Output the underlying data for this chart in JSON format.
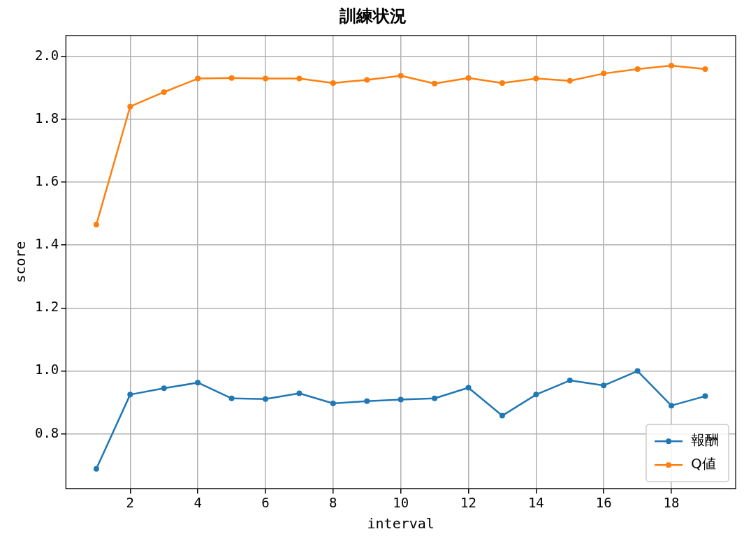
{
  "chart_data": {
    "type": "line",
    "title": "訓練状況",
    "xlabel": "interval",
    "ylabel": "score",
    "x": [
      1,
      2,
      3,
      4,
      5,
      6,
      7,
      8,
      9,
      10,
      11,
      12,
      13,
      14,
      15,
      16,
      17,
      18,
      19
    ],
    "series": [
      {
        "name": "報酬",
        "color": "#1f77b4",
        "values": [
          0.689,
          0.925,
          0.945,
          0.963,
          0.913,
          0.911,
          0.929,
          0.897,
          0.904,
          0.909,
          0.913,
          0.947,
          0.858,
          0.925,
          0.97,
          0.954,
          1.0,
          0.89,
          0.92
        ]
      },
      {
        "name": "Q値",
        "color": "#ff7f0e",
        "values": [
          1.465,
          1.84,
          1.886,
          1.929,
          1.931,
          1.929,
          1.929,
          1.915,
          1.925,
          1.938,
          1.913,
          1.931,
          1.915,
          1.929,
          1.922,
          1.945,
          1.959,
          1.97,
          1.959
        ]
      }
    ],
    "xlim": [
      0.1,
      19.9
    ],
    "xticks": [
      2,
      4,
      6,
      8,
      10,
      12,
      14,
      16,
      18
    ],
    "ylim": [
      0.626,
      2.066
    ],
    "yticks": [
      0.8,
      {
        "value": 1,
        "label": "1.0"
      },
      1.2,
      1.4,
      1.6,
      1.8,
      {
        "value": 2,
        "label": "2.0"
      }
    ],
    "grid": true,
    "legend": "bottom right",
    "marker": "circle",
    "line_style": "solid"
  }
}
